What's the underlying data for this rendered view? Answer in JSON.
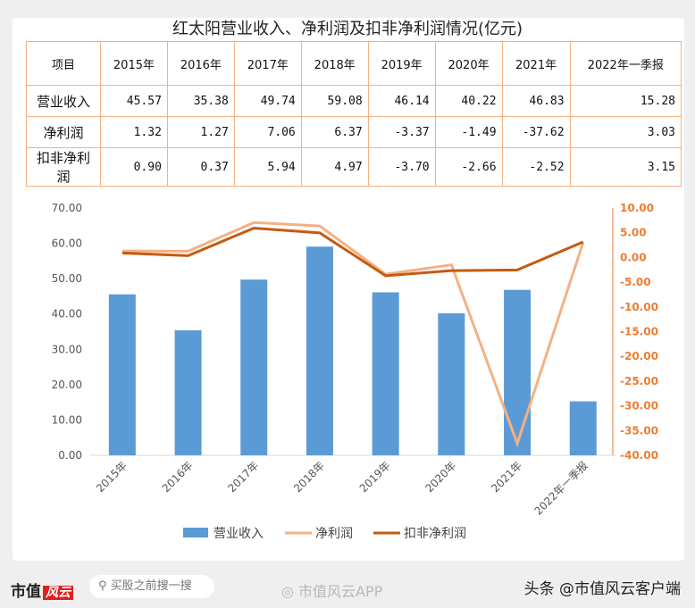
{
  "title": "红太阳营业收入、净利润及扣非净利润情况(亿元)",
  "table": {
    "header": [
      "项目",
      "2015年",
      "2016年",
      "2017年",
      "2018年",
      "2019年",
      "2020年",
      "2021年",
      "2022年一季报"
    ],
    "rows": [
      [
        "营业收入",
        "45.57",
        "35.38",
        "49.74",
        "59.08",
        "46.14",
        "40.22",
        "46.83",
        "15.28"
      ],
      [
        "净利润",
        "1.32",
        "1.27",
        "7.06",
        "6.37",
        "-3.37",
        "-1.49",
        "-37.62",
        "3.03"
      ],
      [
        "扣非净利润",
        "0.90",
        "0.37",
        "5.94",
        "4.97",
        "-3.70",
        "-2.66",
        "-2.52",
        "3.15"
      ]
    ]
  },
  "chart_data": {
    "type": "bar+line",
    "categories": [
      "2015年",
      "2016年",
      "2017年",
      "2018年",
      "2019年",
      "2020年",
      "2021年",
      "2022年一季报"
    ],
    "series": [
      {
        "name": "营业收入",
        "type": "bar",
        "axis": "left",
        "color": "#5b9bd5",
        "values": [
          45.57,
          35.38,
          49.74,
          59.08,
          46.14,
          40.22,
          46.83,
          15.28
        ]
      },
      {
        "name": "净利润",
        "type": "line",
        "axis": "right",
        "color": "#f4b183",
        "values": [
          1.32,
          1.27,
          7.06,
          6.37,
          -3.37,
          -1.49,
          -37.62,
          3.03
        ]
      },
      {
        "name": "扣非净利润",
        "type": "line",
        "axis": "right",
        "color": "#c55a11",
        "values": [
          0.9,
          0.37,
          5.94,
          4.97,
          -3.7,
          -2.66,
          -2.52,
          3.15
        ]
      }
    ],
    "left_axis": {
      "range": [
        0,
        70
      ],
      "step": 10,
      "ticks": [
        "0.00",
        "10.00",
        "20.00",
        "30.00",
        "40.00",
        "50.00",
        "60.00",
        "70.00"
      ]
    },
    "right_axis": {
      "range": [
        -40,
        10
      ],
      "step": 5,
      "color": "#ed7d31",
      "ticks": [
        "-40.00",
        "-35.00",
        "-30.00",
        "-25.00",
        "-20.00",
        "-15.00",
        "-10.00",
        "-5.00",
        "0.00",
        "5.00",
        "10.00"
      ]
    },
    "legend": "bottom",
    "grid": false
  },
  "footer": {
    "logo": "市值",
    "logo_badge": "风云",
    "search_placeholder": "买股之前搜一搜",
    "weibo": "市值风云APP",
    "toutiao": "头条 @市值风云客户端"
  }
}
